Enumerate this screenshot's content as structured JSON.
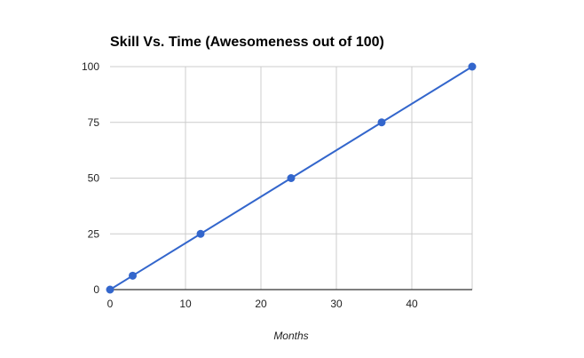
{
  "colors": {
    "series": "#3366cc",
    "grid": "#cccccc",
    "axis": "#333333"
  },
  "chart_data": {
    "type": "line",
    "title": "Skill Vs. Time (Awesomeness out of 100)",
    "xlabel": "Months",
    "ylabel": "",
    "xlim": [
      0,
      48
    ],
    "ylim": [
      0,
      100
    ],
    "xticks": [
      0,
      10,
      20,
      30,
      40
    ],
    "xtick_labels": [
      "0",
      "10",
      "20",
      "30",
      "40"
    ],
    "yticks": [
      0,
      25,
      50,
      75,
      100
    ],
    "ytick_labels": [
      "0",
      "25",
      "50",
      "75",
      "100"
    ],
    "grid": true,
    "legend": "none",
    "series": [
      {
        "x": [
          0,
          3,
          12,
          24,
          36,
          48
        ],
        "y": [
          0,
          6.25,
          25,
          50,
          75,
          100
        ]
      }
    ]
  }
}
